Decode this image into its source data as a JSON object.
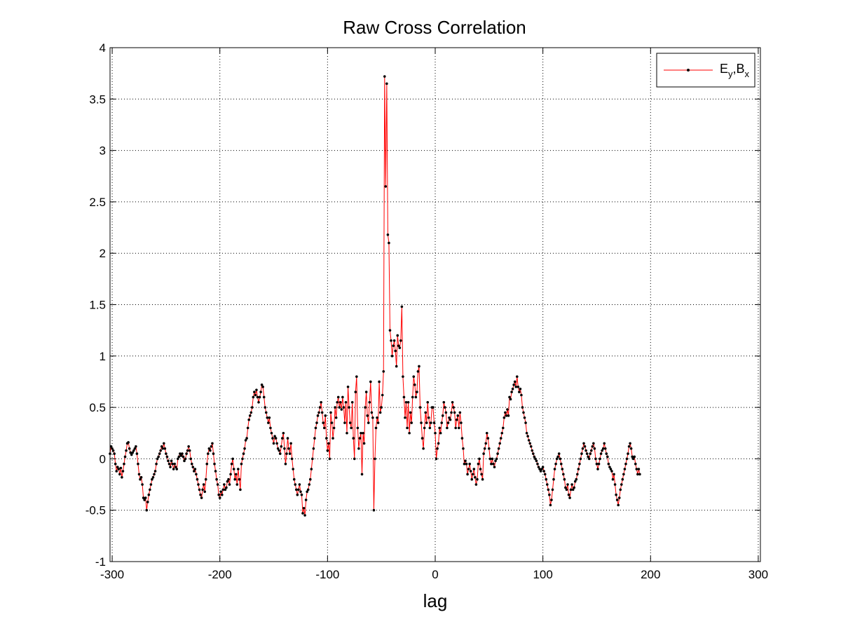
{
  "chart_data": {
    "type": "line",
    "title": "Raw Cross Correlation",
    "xlabel": "lag",
    "ylabel": "",
    "xlim": [
      -302,
      302
    ],
    "ylim": [
      -1,
      4
    ],
    "xticks": [
      -300,
      -200,
      -100,
      0,
      100,
      200,
      300
    ],
    "xtick_labels": [
      "-300",
      "-200",
      "-100",
      "0",
      "100",
      "200",
      "300"
    ],
    "yticks": [
      -1,
      -0.5,
      0,
      0.5,
      1,
      1.5,
      2,
      2.5,
      3,
      3.5,
      4
    ],
    "ytick_labels": [
      "-1",
      "-0.5",
      "0",
      "0.5",
      "1",
      "1.5",
      "2",
      "2.5",
      "3",
      "3.5",
      "4"
    ],
    "grid": true,
    "legend_position": "top-right",
    "series": [
      {
        "name_main": "E",
        "name_sub1": "y",
        "name_mid": ",B",
        "name_sub2": "x",
        "line_color": "#ff0000",
        "marker_color": "#000000",
        "x_start": -302,
        "x_step": 1,
        "values": [
          0.05,
          0.12,
          0.1,
          0.08,
          0.05,
          -0.05,
          -0.12,
          -0.08,
          -0.1,
          -0.15,
          -0.09,
          -0.18,
          -0.12,
          -0.05,
          0.02,
          0.08,
          0.15,
          0.16,
          0.1,
          0.06,
          0.04,
          0.06,
          0.08,
          0.1,
          0.12,
          0.05,
          -0.05,
          -0.15,
          -0.2,
          -0.18,
          -0.25,
          -0.38,
          -0.4,
          -0.38,
          -0.5,
          -0.42,
          -0.35,
          -0.3,
          -0.25,
          -0.2,
          -0.18,
          -0.15,
          -0.12,
          -0.05,
          0.0,
          0.02,
          0.05,
          0.08,
          0.12,
          0.1,
          0.15,
          0.1,
          0.05,
          0.02,
          -0.02,
          -0.05,
          -0.08,
          -0.02,
          -0.05,
          -0.1,
          -0.05,
          -0.08,
          -0.1,
          0.0,
          0.02,
          0.05,
          0.03,
          0.05,
          0.02,
          -0.02,
          0.0,
          0.05,
          0.08,
          0.12,
          0.08,
          0.0,
          -0.05,
          -0.08,
          -0.12,
          -0.1,
          -0.15,
          -0.2,
          -0.25,
          -0.3,
          -0.35,
          -0.38,
          -0.3,
          -0.25,
          -0.32,
          -0.2,
          -0.05,
          0.05,
          0.1,
          0.08,
          0.12,
          0.15,
          0.05,
          -0.05,
          -0.12,
          -0.2,
          -0.25,
          -0.35,
          -0.38,
          -0.32,
          -0.35,
          -0.3,
          -0.25,
          -0.3,
          -0.28,
          -0.22,
          -0.2,
          -0.25,
          -0.15,
          -0.05,
          0.0,
          -0.1,
          -0.2,
          -0.15,
          -0.25,
          -0.1,
          -0.2,
          -0.3,
          -0.05,
          0.0,
          0.05,
          0.1,
          0.18,
          0.2,
          0.3,
          0.38,
          0.42,
          0.45,
          0.5,
          0.6,
          0.65,
          0.62,
          0.67,
          0.6,
          0.55,
          0.6,
          0.65,
          0.72,
          0.7,
          0.6,
          0.5,
          0.45,
          0.4,
          0.35,
          0.4,
          0.3,
          0.25,
          0.2,
          0.15,
          0.22,
          0.2,
          0.15,
          0.1,
          0.08,
          0.05,
          0.12,
          0.2,
          0.25,
          0.1,
          -0.05,
          0.05,
          0.2,
          0.1,
          0.05,
          0.15,
          0.0,
          -0.1,
          -0.2,
          -0.25,
          -0.3,
          -0.35,
          -0.3,
          -0.25,
          -0.32,
          -0.35,
          -0.53,
          -0.48,
          -0.55,
          -0.4,
          -0.32,
          -0.3,
          -0.25,
          -0.2,
          -0.1,
          0.0,
          0.1,
          0.2,
          0.3,
          0.35,
          0.42,
          0.45,
          0.5,
          0.55,
          0.45,
          0.35,
          0.3,
          0.42,
          0.2,
          0.08,
          0.15,
          0.0,
          0.45,
          0.35,
          0.2,
          0.3,
          0.5,
          0.4,
          0.55,
          0.6,
          0.5,
          0.55,
          0.48,
          0.6,
          0.5,
          0.35,
          0.55,
          0.25,
          0.7,
          0.5,
          0.35,
          0.3,
          0.55,
          0.2,
          0.0,
          0.65,
          0.8,
          0.3,
          0.1,
          0.2,
          0.25,
          -0.15,
          0.25,
          0.15,
          0.5,
          0.65,
          0.42,
          0.35,
          0.55,
          0.75,
          0.45,
          0.4,
          -0.5,
          0.0,
          0.3,
          0.4,
          0.35,
          0.75,
          0.45,
          0.5,
          0.62,
          0.85,
          3.72,
          2.65,
          3.65,
          2.18,
          2.1,
          1.25,
          1.15,
          1.0,
          1.1,
          1.15,
          1.05,
          0.9,
          1.2,
          1.1,
          1.08,
          1.15,
          1.48,
          0.8,
          0.6,
          0.4,
          0.55,
          0.3,
          0.55,
          0.25,
          0.45,
          0.35,
          0.6,
          0.8,
          0.72,
          0.6,
          0.65,
          0.85,
          0.9,
          0.5,
          0.35,
          0.2,
          0.1,
          0.3,
          0.45,
          0.35,
          0.55,
          0.4,
          0.3,
          0.35,
          0.5,
          0.5,
          0.35,
          0.25,
          0.0,
          0.1,
          0.15,
          0.3,
          0.25,
          0.35,
          0.42,
          0.55,
          0.5,
          0.45,
          0.3,
          0.35,
          0.4,
          0.38,
          0.45,
          0.55,
          0.5,
          0.45,
          0.3,
          0.38,
          0.42,
          0.3,
          0.45,
          0.35,
          0.2,
          0.1,
          -0.05,
          -0.02,
          -0.05,
          -0.15,
          -0.1,
          -0.05,
          -0.12,
          -0.2,
          -0.15,
          -0.1,
          -0.18,
          -0.25,
          -0.2,
          -0.05,
          0.0,
          -0.1,
          -0.15,
          -0.2,
          0.05,
          0.1,
          0.15,
          0.25,
          0.2,
          0.1,
          0.0,
          -0.05,
          0.0,
          -0.05,
          -0.08,
          -0.02,
          0.0,
          0.05,
          0.1,
          0.15,
          0.2,
          0.25,
          0.3,
          0.4,
          0.45,
          0.42,
          0.48,
          0.42,
          0.6,
          0.58,
          0.65,
          0.68,
          0.72,
          0.75,
          0.7,
          0.8,
          0.7,
          0.65,
          0.68,
          0.62,
          0.5,
          0.45,
          0.4,
          0.35,
          0.25,
          0.22,
          0.18,
          0.15,
          0.12,
          0.08,
          0.05,
          0.02,
          0.0,
          -0.02,
          -0.05,
          -0.08,
          -0.1,
          -0.12,
          -0.1,
          -0.08,
          -0.12,
          -0.15,
          -0.2,
          -0.25,
          -0.3,
          -0.35,
          -0.45,
          -0.4,
          -0.3,
          -0.2,
          -0.1,
          -0.05,
          0.0,
          0.02,
          0.05,
          0.0,
          -0.05,
          -0.1,
          -0.15,
          -0.2,
          -0.28,
          -0.3,
          -0.25,
          -0.35,
          -0.38,
          -0.3,
          -0.25,
          -0.3,
          -0.28,
          -0.22,
          -0.2,
          -0.15,
          -0.1,
          -0.05,
          0.0,
          0.05,
          0.1,
          0.15,
          0.12,
          0.08,
          0.05,
          0.02,
          0.0,
          0.05,
          0.08,
          0.12,
          0.15,
          0.1,
          0.0,
          -0.05,
          -0.1,
          -0.05,
          0.0,
          0.05,
          0.08,
          0.1,
          0.15,
          0.1,
          0.05,
          0.02,
          -0.05,
          -0.08,
          -0.1,
          -0.12,
          -0.2,
          -0.15,
          -0.25,
          -0.35,
          -0.4,
          -0.45,
          -0.38,
          -0.3,
          -0.25,
          -0.2,
          -0.15,
          -0.1,
          -0.05,
          0.0,
          0.05,
          0.12,
          0.15,
          0.1,
          0.02,
          0.0,
          0.02,
          -0.05,
          -0.1,
          -0.15,
          -0.1,
          -0.15
        ]
      }
    ]
  }
}
